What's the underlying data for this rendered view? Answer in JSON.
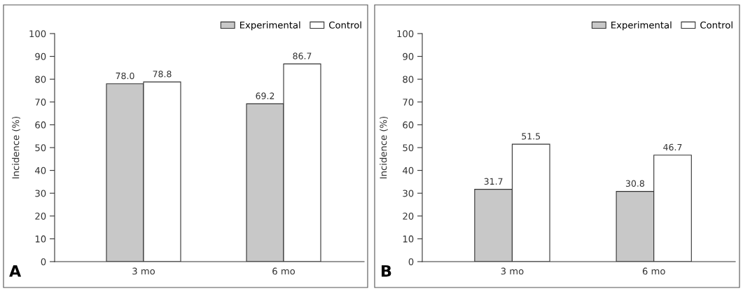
{
  "chart_data": [
    {
      "type": "bar",
      "categories": [
        "3 mo",
        "6 mo"
      ],
      "ylabel": "Incidence (%)",
      "ylim": [
        0,
        100
      ],
      "yticks": [
        0,
        10,
        20,
        30,
        40,
        50,
        60,
        70,
        80,
        90,
        100
      ],
      "data_labels": true,
      "legend": "top right",
      "grid": false,
      "annotations": [
        "A"
      ],
      "series": [
        {
          "name": "Experimental",
          "color": "#c8c8c8",
          "values": [
            78.0,
            69.2
          ],
          "value_labels": [
            "78.0",
            "69.2"
          ]
        },
        {
          "name": "Control",
          "color": "#ffffff",
          "values": [
            78.8,
            86.7
          ],
          "value_labels": [
            "78.8",
            "86.7"
          ]
        }
      ]
    },
    {
      "type": "bar",
      "categories": [
        "3 mo",
        "6 mo"
      ],
      "ylabel": "Incidence (%)",
      "ylim": [
        0,
        100
      ],
      "yticks": [
        0,
        10,
        20,
        30,
        40,
        50,
        60,
        70,
        80,
        90,
        100
      ],
      "data_labels": true,
      "legend": "top right",
      "grid": false,
      "annotations": [
        "B"
      ],
      "series": [
        {
          "name": "Experimental",
          "color": "#c8c8c8",
          "values": [
            31.7,
            30.8
          ],
          "value_labels": [
            "31.7",
            "30.8"
          ]
        },
        {
          "name": "Control",
          "color": "#ffffff",
          "values": [
            51.5,
            46.7
          ],
          "value_labels": [
            "51.5",
            "46.7"
          ]
        }
      ]
    }
  ]
}
